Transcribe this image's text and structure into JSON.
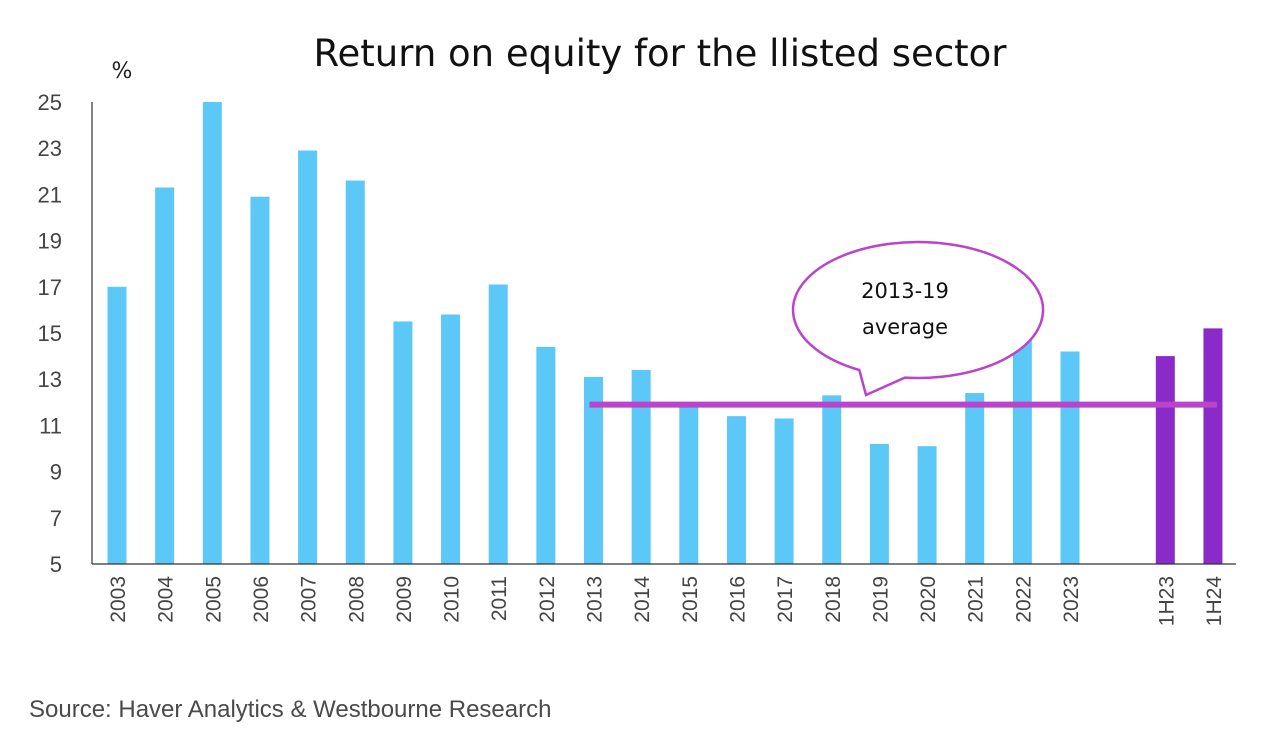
{
  "chart_data": {
    "type": "bar",
    "title": "Return on equity for the llisted sector",
    "y_unit_label": "%",
    "ylim": [
      5,
      25
    ],
    "yticks": [
      5,
      7,
      9,
      11,
      13,
      15,
      17,
      19,
      21,
      23,
      25
    ],
    "grid": false,
    "categories": [
      "2003",
      "2004",
      "2005",
      "2006",
      "2007",
      "2008",
      "2009",
      "2010",
      "2011",
      "2012",
      "2013",
      "2014",
      "2015",
      "2016",
      "2017",
      "2018",
      "2019",
      "2020",
      "2021",
      "2022",
      "2023",
      "",
      "1H23",
      "1H24"
    ],
    "values": [
      17.0,
      21.3,
      25.0,
      20.9,
      22.9,
      21.6,
      15.5,
      15.8,
      17.1,
      14.4,
      13.1,
      13.4,
      12.0,
      11.4,
      11.3,
      12.3,
      10.2,
      10.1,
      12.4,
      14.8,
      14.2,
      null,
      14.0,
      15.2
    ],
    "bar_colors": [
      "#5bc8f8",
      "#5bc8f8",
      "#5bc8f8",
      "#5bc8f8",
      "#5bc8f8",
      "#5bc8f8",
      "#5bc8f8",
      "#5bc8f8",
      "#5bc8f8",
      "#5bc8f8",
      "#5bc8f8",
      "#5bc8f8",
      "#5bc8f8",
      "#5bc8f8",
      "#5bc8f8",
      "#5bc8f8",
      "#5bc8f8",
      "#5bc8f8",
      "#5bc8f8",
      "#5bc8f8",
      "#5bc8f8",
      "#5bc8f8",
      "#8a2ac8",
      "#8a2ac8"
    ],
    "average_line": {
      "value": 11.9,
      "from_category": "2013",
      "to_category": "1H24",
      "color": "#bb44cc"
    },
    "annotation": {
      "lines": [
        "2013-19",
        "average"
      ],
      "color": "#bb44cc"
    }
  },
  "source": "Source: Haver Analytics & Westbourne Research"
}
